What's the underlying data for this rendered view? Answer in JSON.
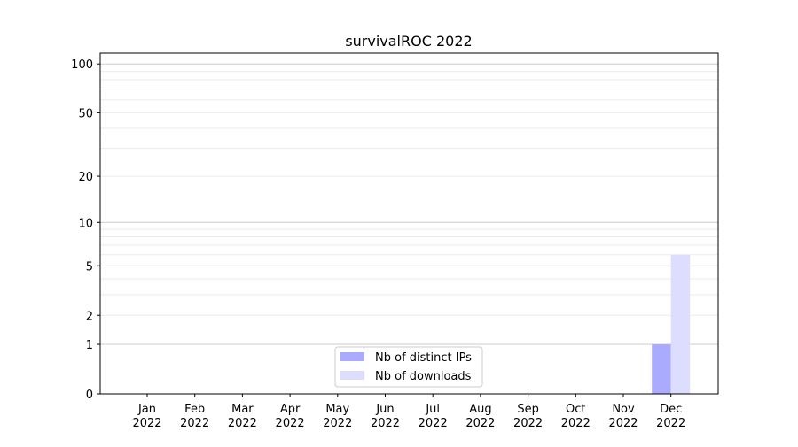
{
  "chart_data": {
    "type": "bar",
    "title": "survivalROC 2022",
    "xlabel": "",
    "ylabel": "",
    "yscale": "symlog (log of 1+value)",
    "ylim": [
      0,
      116
    ],
    "yticks": [
      0,
      1,
      2,
      5,
      10,
      20,
      50,
      100
    ],
    "ytick_labels": [
      "0",
      "1",
      "2",
      "5",
      "10",
      "20",
      "50",
      "100"
    ],
    "grid": "horizontal major and minor",
    "legend_position": "bottom-center",
    "categories": [
      "Jan\n2022",
      "Feb\n2022",
      "Mar\n2022",
      "Apr\n2022",
      "May\n2022",
      "Jun\n2022",
      "Jul\n2022",
      "Aug\n2022",
      "Sep\n2022",
      "Oct\n2022",
      "Nov\n2022",
      "Dec\n2022"
    ],
    "category_months": [
      "Jan",
      "Feb",
      "Mar",
      "Apr",
      "May",
      "Jun",
      "Jul",
      "Aug",
      "Sep",
      "Oct",
      "Nov",
      "Dec"
    ],
    "category_year": "2022",
    "series": [
      {
        "name": "Nb of distinct IPs",
        "color": "#aaaaff",
        "values": [
          0,
          0,
          0,
          0,
          0,
          0,
          0,
          0,
          0,
          0,
          0,
          1
        ]
      },
      {
        "name": "Nb of downloads",
        "color": "#ddddff",
        "values": [
          0,
          0,
          0,
          0,
          0,
          0,
          0,
          0,
          0,
          0,
          0,
          6
        ]
      }
    ]
  }
}
